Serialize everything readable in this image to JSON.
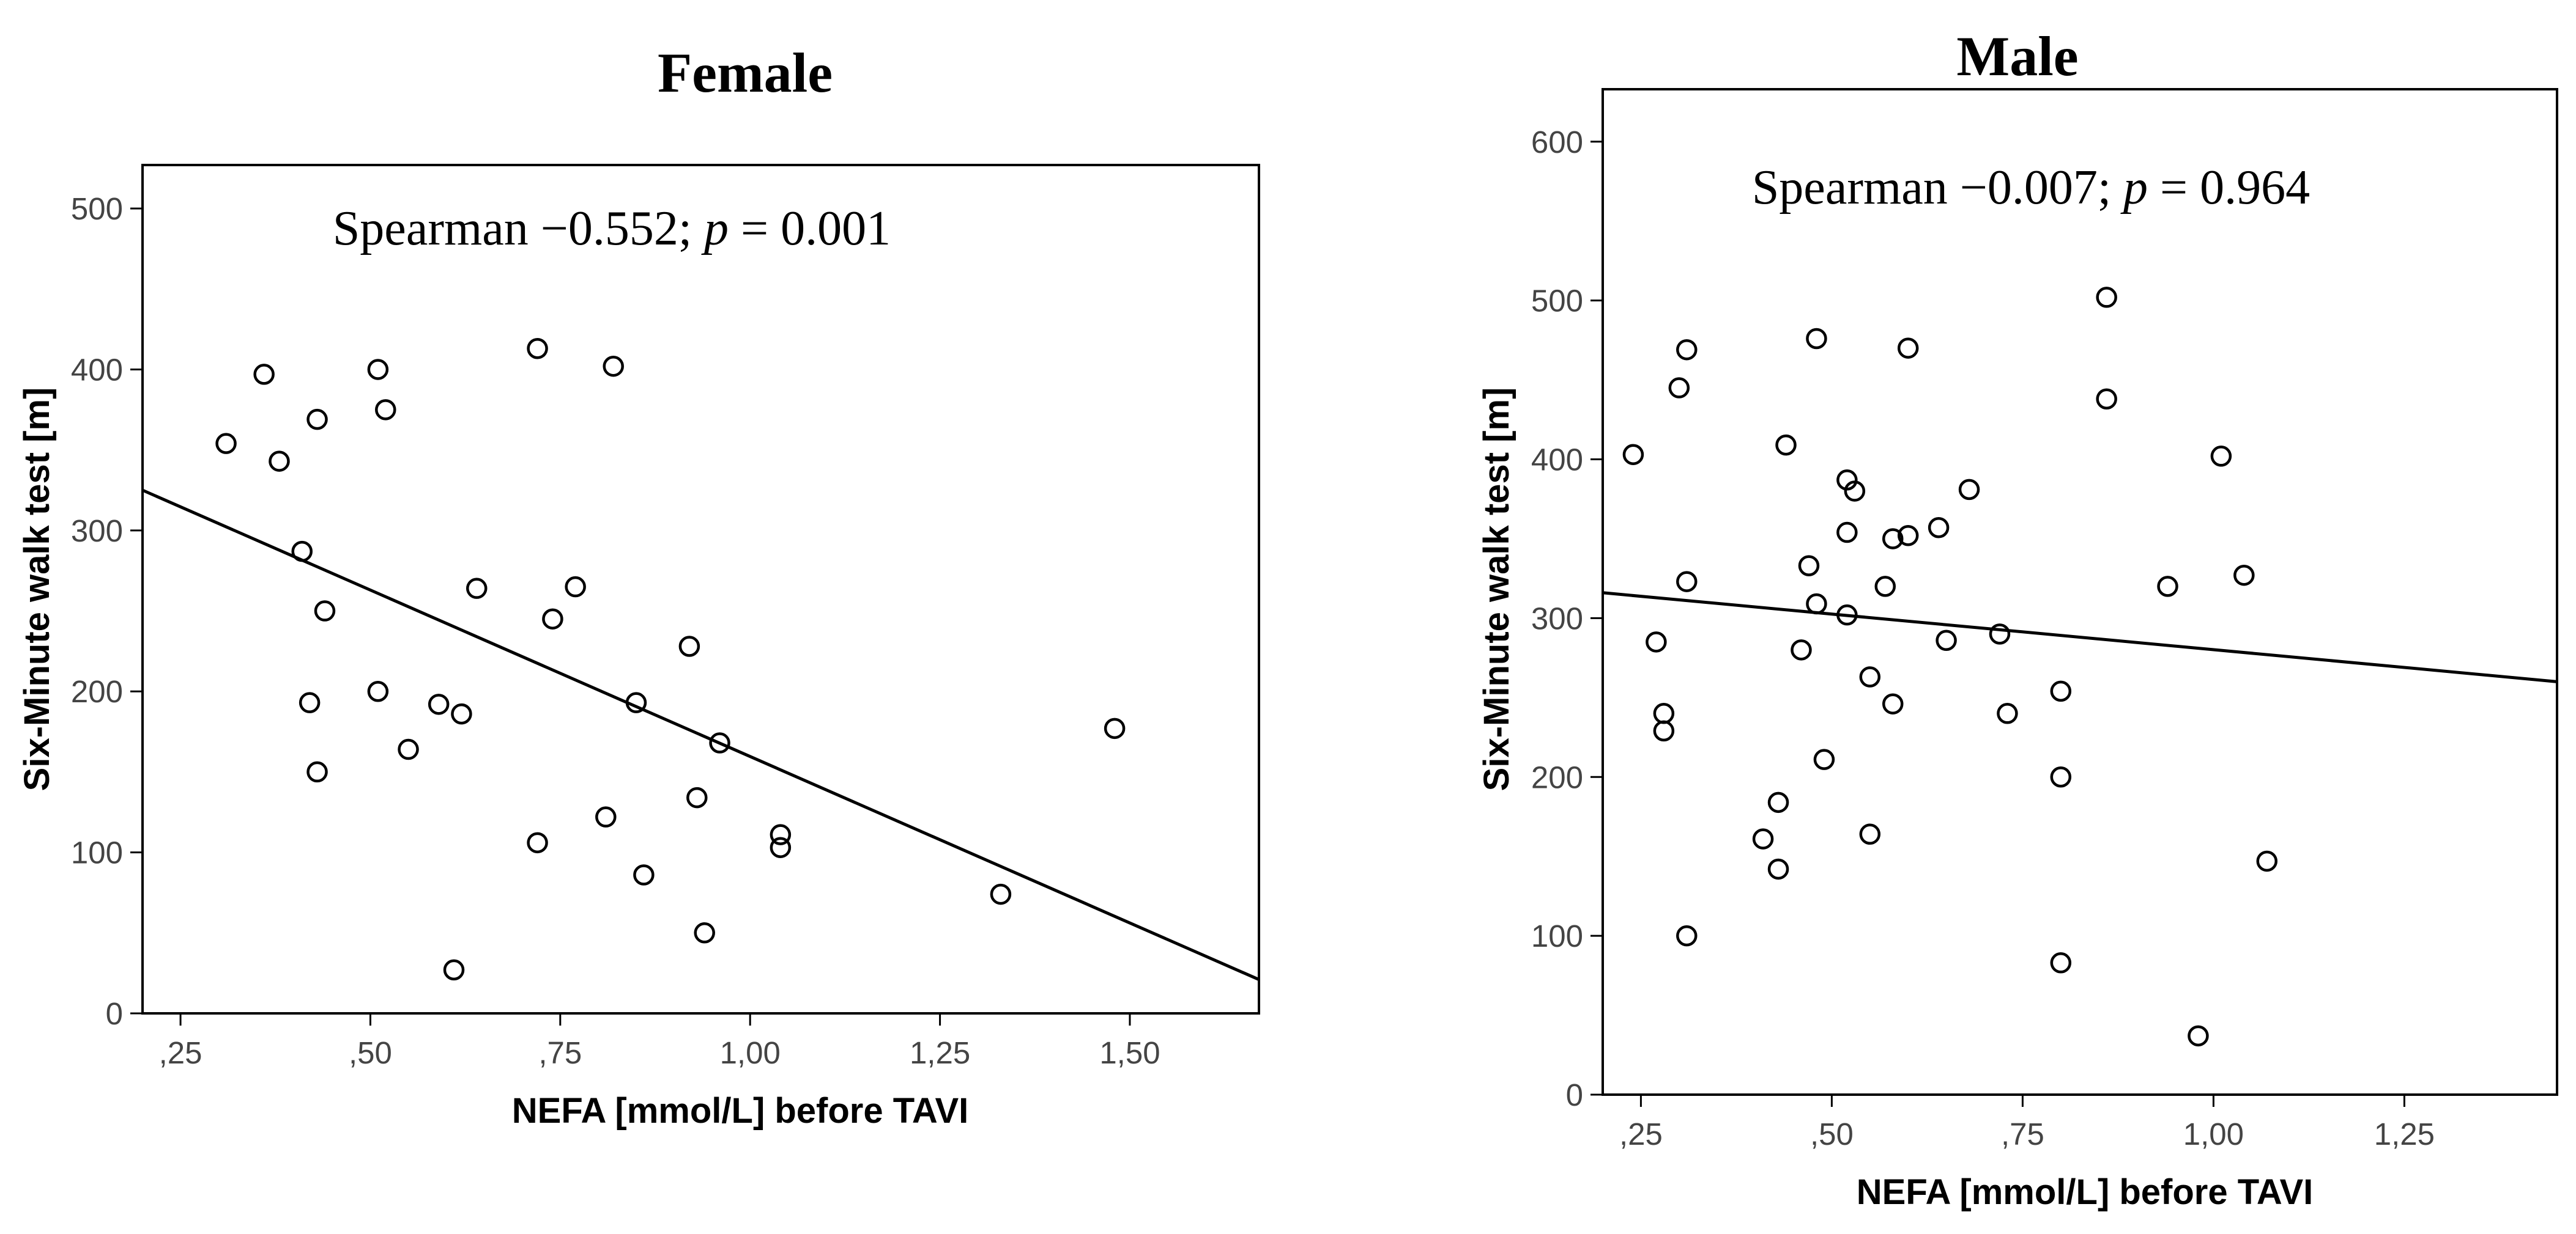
{
  "chart_data": [
    {
      "type": "scatter",
      "title": "Female",
      "annotation": {
        "prefix": "Spearman −0.552; ",
        "p_symbol": "p",
        "suffix": " = 0.001"
      },
      "xlabel": "NEFA [mmol/L] before TAVI",
      "ylabel": "Six-Minute walk test [m]",
      "xlim": [
        0.2,
        1.67
      ],
      "ylim": [
        0,
        527
      ],
      "xticks": [
        0.25,
        0.5,
        0.75,
        1.0,
        1.25,
        1.5
      ],
      "xtick_labels": [
        ",25",
        ",50",
        ",75",
        "1,00",
        "1,25",
        "1,50"
      ],
      "yticks": [
        0,
        100,
        200,
        300,
        400,
        500
      ],
      "ytick_labels": [
        "0",
        "100",
        "200",
        "300",
        "400",
        "500"
      ],
      "points": [
        [
          0.31,
          354
        ],
        [
          0.36,
          397
        ],
        [
          0.38,
          343
        ],
        [
          0.41,
          287
        ],
        [
          0.42,
          193
        ],
        [
          0.43,
          369
        ],
        [
          0.43,
          150
        ],
        [
          0.44,
          250
        ],
        [
          0.51,
          400
        ],
        [
          0.51,
          200
        ],
        [
          0.52,
          375
        ],
        [
          0.55,
          164
        ],
        [
          0.59,
          192
        ],
        [
          0.61,
          27
        ],
        [
          0.62,
          186
        ],
        [
          0.64,
          264
        ],
        [
          0.72,
          413
        ],
        [
          0.72,
          106
        ],
        [
          0.74,
          245
        ],
        [
          0.77,
          265
        ],
        [
          0.81,
          122
        ],
        [
          0.82,
          402
        ],
        [
          0.85,
          193
        ],
        [
          0.86,
          86
        ],
        [
          0.92,
          228
        ],
        [
          0.93,
          134
        ],
        [
          0.94,
          50
        ],
        [
          0.96,
          168
        ],
        [
          1.04,
          111
        ],
        [
          1.04,
          103
        ],
        [
          1.33,
          74
        ],
        [
          1.48,
          177
        ]
      ],
      "fit_line": [
        [
          0.2,
          325
        ],
        [
          1.67,
          21
        ]
      ]
    },
    {
      "type": "scatter",
      "title": "Male",
      "annotation": {
        "prefix": "Spearman −0.007; ",
        "p_symbol": "p",
        "suffix": " = 0.964"
      },
      "xlabel": "NEFA [mmol/L] before TAVI",
      "ylabel": "Six-Minute walk test [m]",
      "xlim": [
        0.2,
        1.45
      ],
      "ylim": [
        0,
        633
      ],
      "xticks": [
        0.25,
        0.5,
        0.75,
        1.0,
        1.25
      ],
      "xtick_labels": [
        ",25",
        ",50",
        ",75",
        "1,00",
        "1,25"
      ],
      "yticks": [
        0,
        100,
        200,
        300,
        400,
        500,
        600
      ],
      "ytick_labels": [
        "0",
        "100",
        "200",
        "300",
        "400",
        "500",
        "600"
      ],
      "points": [
        [
          0.24,
          403
        ],
        [
          0.27,
          285
        ],
        [
          0.28,
          240
        ],
        [
          0.28,
          229
        ],
        [
          0.3,
          445
        ],
        [
          0.31,
          469
        ],
        [
          0.31,
          323
        ],
        [
          0.31,
          100
        ],
        [
          0.41,
          161
        ],
        [
          0.43,
          184
        ],
        [
          0.43,
          142
        ],
        [
          0.44,
          409
        ],
        [
          0.46,
          280
        ],
        [
          0.47,
          333
        ],
        [
          0.48,
          476
        ],
        [
          0.48,
          309
        ],
        [
          0.49,
          211
        ],
        [
          0.52,
          387
        ],
        [
          0.52,
          354
        ],
        [
          0.52,
          302
        ],
        [
          0.53,
          380
        ],
        [
          0.55,
          263
        ],
        [
          0.55,
          164
        ],
        [
          0.57,
          320
        ],
        [
          0.58,
          350
        ],
        [
          0.58,
          246
        ],
        [
          0.6,
          352
        ],
        [
          0.6,
          470
        ],
        [
          0.64,
          357
        ],
        [
          0.65,
          286
        ],
        [
          0.68,
          381
        ],
        [
          0.72,
          290
        ],
        [
          0.73,
          240
        ],
        [
          0.8,
          254
        ],
        [
          0.8,
          200
        ],
        [
          0.8,
          83
        ],
        [
          0.86,
          502
        ],
        [
          0.86,
          438
        ],
        [
          0.94,
          320
        ],
        [
          0.98,
          37
        ],
        [
          1.01,
          402
        ],
        [
          1.04,
          327
        ],
        [
          1.07,
          147
        ]
      ],
      "fit_line": [
        [
          0.2,
          316
        ],
        [
          1.45,
          260
        ]
      ]
    }
  ]
}
